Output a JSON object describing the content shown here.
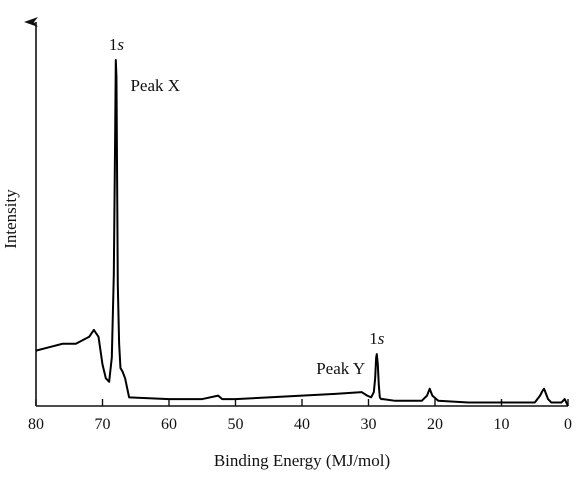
{
  "chart_data": {
    "type": "line",
    "title": "",
    "xlabel": "Binding Energy (MJ/mol)",
    "ylabel": "Intensity",
    "x_reversed": true,
    "xlim": [
      80,
      0
    ],
    "ylim": [
      0,
      1
    ],
    "x_ticks": [
      80,
      70,
      60,
      50,
      40,
      30,
      20,
      10,
      0
    ],
    "x_tick_labels": [
      "80",
      "70",
      "60",
      "50",
      "40",
      "30",
      "20",
      "10",
      "0"
    ],
    "grid": false,
    "line_color": "#000000",
    "series": [
      {
        "x": [
          80,
          78,
          76,
          74,
          72,
          71.3,
          70.6,
          70.0,
          69.5,
          69.0,
          68.6,
          68.3,
          68.1,
          68.0,
          67.9,
          67.8,
          67.7,
          67.5,
          67.3,
          67.0,
          66.6,
          66.0,
          60,
          55,
          52.6,
          52.3,
          52.0,
          50,
          45,
          40,
          35,
          31,
          30.2,
          29.6,
          29.2,
          29.0,
          28.85,
          28.75,
          28.6,
          28.45,
          28.3,
          28.1,
          27.8,
          26,
          22,
          21.2,
          20.8,
          20.4,
          19.5,
          15,
          10,
          5,
          4.2,
          3.8,
          3.6,
          3.4,
          3.0,
          2.5,
          1.0,
          0.5,
          0
        ],
        "y": [
          0.16,
          0.17,
          0.18,
          0.18,
          0.2,
          0.22,
          0.2,
          0.12,
          0.08,
          0.07,
          0.14,
          0.38,
          0.78,
          1.0,
          0.95,
          0.65,
          0.35,
          0.18,
          0.11,
          0.1,
          0.08,
          0.025,
          0.02,
          0.02,
          0.03,
          0.025,
          0.02,
          0.02,
          0.025,
          0.03,
          0.035,
          0.04,
          0.03,
          0.025,
          0.04,
          0.08,
          0.14,
          0.15,
          0.12,
          0.06,
          0.025,
          0.02,
          0.02,
          0.015,
          0.015,
          0.03,
          0.05,
          0.03,
          0.015,
          0.01,
          0.01,
          0.01,
          0.03,
          0.045,
          0.05,
          0.04,
          0.02,
          0.01,
          0.01,
          0.02,
          0.0
        ]
      }
    ],
    "annotations": [
      {
        "text_main": "1",
        "text_italic": "s",
        "x": 67.9,
        "y": 1.0,
        "anchor": "above"
      },
      {
        "text_main": "Peak X",
        "text_italic": "",
        "x": 67.3,
        "y": 0.93,
        "anchor": "right"
      },
      {
        "text_main": "1",
        "text_italic": "s",
        "x": 28.75,
        "y": 0.15,
        "anchor": "above"
      },
      {
        "text_main": "Peak Y",
        "text_italic": "",
        "x": 29.6,
        "y": 0.11,
        "anchor": "left"
      }
    ]
  }
}
